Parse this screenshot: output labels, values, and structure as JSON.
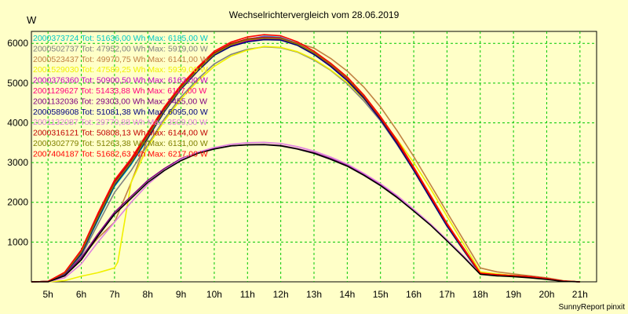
{
  "chart_data": {
    "type": "line",
    "title": "Wechselrichtervergleich vom 28.06.2019",
    "y_unit": "W",
    "ylim": [
      0,
      6300
    ],
    "y_ticks": [
      1000,
      2000,
      3000,
      4000,
      5000,
      6000
    ],
    "xlim": [
      4.5,
      21.5
    ],
    "x_ticks": [
      5,
      6,
      7,
      8,
      9,
      10,
      11,
      12,
      13,
      14,
      15,
      16,
      17,
      18,
      19,
      20,
      21
    ],
    "x_tick_labels": [
      "5h",
      "6h",
      "7h",
      "8h",
      "9h",
      "10h",
      "11h",
      "12h",
      "13h",
      "14h",
      "15h",
      "16h",
      "17h",
      "18h",
      "19h",
      "20h",
      "21h"
    ],
    "grid": true,
    "legend_position": "top-left",
    "credit": "SunnyReport pinxit",
    "series": [
      {
        "name": "2000373724 Tot: 51636,00 Wh Max: 6185,00 W",
        "color": "#00c8c8",
        "x": [
          4.5,
          5,
          5.5,
          6,
          6.5,
          7,
          7.5,
          8,
          8.5,
          9,
          9.5,
          10,
          10.5,
          11,
          11.5,
          12,
          12.5,
          13,
          13.5,
          14,
          14.5,
          15,
          15.5,
          16,
          16.5,
          17,
          17.5,
          18,
          18.5,
          19,
          19.5,
          20,
          20.5,
          21
        ],
        "y": [
          0,
          10,
          200,
          700,
          1550,
          2400,
          2950,
          3600,
          4300,
          4900,
          5350,
          5750,
          5960,
          6100,
          6180,
          6150,
          6000,
          5750,
          5450,
          5100,
          4650,
          4100,
          3500,
          2800,
          2100,
          1400,
          800,
          200,
          170,
          150,
          130,
          80,
          20,
          0
        ]
      },
      {
        "name": "2000502737 Tot: 47952,00 Wh Max: 5919,00 W",
        "color": "#808080",
        "x": [
          4.5,
          5,
          5.5,
          6,
          6.5,
          7,
          7.5,
          8,
          8.5,
          9,
          9.5,
          10,
          10.5,
          11,
          11.5,
          12,
          12.5,
          13,
          13.5,
          14,
          14.5,
          15,
          15.5,
          16,
          16.5,
          17,
          17.5,
          18,
          18.5,
          19,
          19.5,
          20,
          20.5,
          21
        ],
        "y": [
          0,
          10,
          190,
          650,
          1450,
          2250,
          2800,
          3450,
          4100,
          4650,
          5100,
          5480,
          5720,
          5850,
          5910,
          5890,
          5780,
          5580,
          5320,
          4980,
          4550,
          4050,
          3450,
          2800,
          2100,
          1450,
          850,
          230,
          190,
          160,
          140,
          90,
          20,
          0
        ]
      },
      {
        "name": "2000523437 Tot: 49970,75 Wh Max: 6141,00 W",
        "color": "#c08040",
        "x": [
          4.5,
          5,
          5.5,
          6,
          6.5,
          7,
          7.5,
          8,
          8.5,
          9,
          9.5,
          10,
          10.5,
          11,
          11.5,
          12,
          12.5,
          13,
          13.5,
          14,
          14.5,
          15,
          15.5,
          16,
          16.5,
          17,
          17.5,
          18,
          18.5,
          19,
          19.5,
          20,
          20.5,
          21
        ],
        "y": [
          0,
          10,
          150,
          600,
          1100,
          1500,
          2500,
          3600,
          4350,
          4850,
          5300,
          5700,
          5930,
          6070,
          6120,
          6100,
          6010,
          5880,
          5620,
          5300,
          4900,
          4400,
          3800,
          3150,
          2450,
          1750,
          1050,
          350,
          250,
          200,
          150,
          100,
          30,
          0
        ]
      },
      {
        "name": "2001529030 Tot: 47589,25 Wh Max: 5939,00 W",
        "color": "#f0f000",
        "x": [
          4.5,
          5,
          5.5,
          6,
          6.5,
          7,
          7.1,
          7.5,
          8,
          8.5,
          9,
          9.5,
          10,
          10.5,
          11,
          11.5,
          12,
          12.5,
          13,
          13.5,
          14,
          14.5,
          15,
          15.5,
          16,
          16.5,
          17,
          17.5,
          18,
          18.5,
          19,
          19.5,
          20,
          20.5,
          21
        ],
        "y": [
          0,
          0,
          30,
          140,
          230,
          350,
          500,
          2500,
          3400,
          4050,
          4600,
          5050,
          5420,
          5680,
          5830,
          5920,
          5900,
          5790,
          5600,
          5330,
          5010,
          4600,
          4120,
          3580,
          3000,
          2350,
          1650,
          950,
          250,
          200,
          160,
          130,
          80,
          20,
          0
        ]
      },
      {
        "name": "2000376360 Tot: 50900,50 Wh Max: 6163,00 W",
        "color": "#c000c0",
        "x": [
          4.5,
          5,
          5.5,
          6,
          6.5,
          7,
          7.5,
          8,
          8.5,
          9,
          9.5,
          10,
          10.5,
          11,
          11.5,
          12,
          12.5,
          13,
          13.5,
          14,
          14.5,
          15,
          15.5,
          16,
          16.5,
          17,
          17.5,
          18,
          18.5,
          19,
          19.5,
          20,
          20.5,
          21
        ],
        "y": [
          0,
          10,
          230,
          760,
          1650,
          2500,
          3050,
          3700,
          4350,
          4900,
          5350,
          5750,
          5980,
          6110,
          6160,
          6140,
          5990,
          5750,
          5450,
          5100,
          4650,
          4100,
          3500,
          2850,
          2150,
          1450,
          820,
          210,
          175,
          150,
          130,
          80,
          20,
          0
        ]
      },
      {
        "name": "2001129627 Tot: 51433,88 Wh Max: 6117,00 W",
        "color": "#ff0080",
        "x": [
          4.5,
          5,
          5.5,
          6,
          6.5,
          7,
          7.5,
          8,
          8.5,
          9,
          9.5,
          10,
          10.5,
          11,
          11.5,
          12,
          12.5,
          13,
          13.5,
          14,
          14.5,
          15,
          15.5,
          16,
          16.5,
          17,
          17.5,
          18,
          18.5,
          19,
          19.5,
          20,
          20.5,
          21
        ],
        "y": [
          0,
          10,
          220,
          720,
          1600,
          2450,
          3000,
          3650,
          4300,
          4880,
          5330,
          5720,
          5940,
          6060,
          6110,
          6100,
          5960,
          5730,
          5430,
          5080,
          4640,
          4100,
          3500,
          2830,
          2130,
          1430,
          810,
          200,
          170,
          150,
          130,
          80,
          20,
          0
        ]
      },
      {
        "name": "2001132036 Tot: 29303,00 Wh Max: 3455,00 W",
        "color": "#800080",
        "x": [
          4.5,
          5,
          5.5,
          6,
          6.5,
          7,
          7.5,
          8,
          8.5,
          9,
          9.5,
          10,
          10.5,
          11,
          11.5,
          12,
          12.5,
          13,
          13.5,
          14,
          14.5,
          15,
          15.5,
          16,
          16.5,
          17,
          17.5,
          18,
          18.5,
          19,
          19.5,
          20,
          20.5,
          21
        ],
        "y": [
          0,
          10,
          170,
          600,
          1200,
          1750,
          2150,
          2550,
          2850,
          3100,
          3250,
          3350,
          3420,
          3450,
          3455,
          3430,
          3350,
          3250,
          3100,
          2930,
          2700,
          2450,
          2150,
          1800,
          1450,
          1050,
          640,
          200,
          160,
          140,
          110,
          70,
          15,
          0
        ]
      },
      {
        "name": "2000589608 Tot: 51081,38 Wh Max: 6095,00 W",
        "color": "#000080",
        "x": [
          4.5,
          5,
          5.5,
          6,
          6.5,
          7,
          7.5,
          8,
          8.5,
          9,
          9.5,
          10,
          10.5,
          11,
          11.5,
          12,
          12.5,
          13,
          13.5,
          14,
          14.5,
          15,
          15.5,
          16,
          16.5,
          17,
          17.5,
          18,
          18.5,
          19,
          19.5,
          20,
          20.5,
          21
        ],
        "y": [
          0,
          10,
          210,
          700,
          1580,
          2430,
          2980,
          3620,
          4280,
          4850,
          5300,
          5700,
          5920,
          6040,
          6090,
          6080,
          5950,
          5720,
          5420,
          5060,
          4620,
          4080,
          3470,
          2800,
          2100,
          1400,
          790,
          200,
          170,
          150,
          130,
          80,
          20,
          0
        ]
      },
      {
        "name": "2001132087 Tot: 29770,88 Wh Max: 3509,00 W",
        "color": "#e080e0",
        "x": [
          4.5,
          5,
          5.5,
          6,
          6.5,
          7,
          7.5,
          8,
          8.5,
          9,
          9.5,
          10,
          10.5,
          11,
          11.5,
          12,
          12.5,
          13,
          13.5,
          14,
          14.5,
          15,
          15.5,
          16,
          16.5,
          17,
          17.5,
          18,
          18.5,
          19,
          19.5,
          20,
          20.5,
          21
        ],
        "y": [
          0,
          0,
          100,
          450,
          1000,
          1500,
          2000,
          2450,
          2800,
          3080,
          3260,
          3380,
          3460,
          3500,
          3509,
          3480,
          3400,
          3290,
          3140,
          2960,
          2730,
          2470,
          2170,
          1820,
          1460,
          1060,
          650,
          200,
          170,
          150,
          120,
          80,
          20,
          0
        ]
      },
      {
        "name": "2000316121 Tot: 50808,13 Wh Max: 6144,00 W",
        "color": "#c00000",
        "x": [
          4.5,
          5,
          5.5,
          6,
          6.5,
          7,
          7.5,
          8,
          8.5,
          9,
          9.5,
          10,
          10.5,
          11,
          11.5,
          12,
          12.5,
          13,
          13.5,
          14,
          14.5,
          15,
          15.5,
          16,
          16.5,
          17,
          17.5,
          18,
          18.5,
          19,
          19.5,
          20,
          20.5,
          21
        ],
        "y": [
          0,
          10,
          230,
          780,
          1680,
          2520,
          3060,
          3720,
          4360,
          4920,
          5370,
          5760,
          5990,
          6110,
          6144,
          6130,
          5990,
          5760,
          5460,
          5110,
          4660,
          4120,
          3520,
          2850,
          2150,
          1450,
          820,
          210,
          175,
          150,
          130,
          80,
          20,
          0
        ]
      },
      {
        "name": "2000302779 Tot: 51263,38 Wh Max: 6131,00 W",
        "color": "#808000",
        "x": [
          4.5,
          5,
          5.5,
          6,
          6.5,
          7,
          7.5,
          8,
          8.5,
          9,
          9.5,
          10,
          10.5,
          11,
          11.5,
          12,
          12.5,
          13,
          13.5,
          14,
          14.5,
          15,
          15.5,
          16,
          16.5,
          17,
          17.5,
          18,
          18.5,
          19,
          19.5,
          20,
          20.5,
          21
        ],
        "y": [
          0,
          10,
          220,
          740,
          1620,
          2460,
          3000,
          3660,
          4310,
          4880,
          5330,
          5730,
          5960,
          6090,
          6131,
          6120,
          5980,
          5760,
          5470,
          5120,
          4680,
          4150,
          3550,
          2880,
          2180,
          1470,
          840,
          210,
          180,
          155,
          130,
          80,
          20,
          0
        ]
      },
      {
        "name": "2007404187 Tot: 51682,63 Wh Max: 6217,00 W",
        "color": "#ff0000",
        "x": [
          4.5,
          5,
          5.5,
          6,
          6.5,
          7,
          7.5,
          8,
          8.5,
          9,
          9.5,
          10,
          10.5,
          11,
          11.5,
          12,
          12.5,
          13,
          13.5,
          14,
          14.5,
          15,
          15.5,
          16,
          16.5,
          17,
          17.5,
          18,
          18.5,
          19,
          19.5,
          20,
          20.5,
          21
        ],
        "y": [
          0,
          10,
          240,
          800,
          1720,
          2560,
          3100,
          3750,
          4400,
          4950,
          5400,
          5800,
          6030,
          6160,
          6217,
          6190,
          6040,
          5800,
          5500,
          5150,
          4700,
          4160,
          3560,
          2880,
          2180,
          1470,
          840,
          220,
          180,
          155,
          130,
          80,
          20,
          0
        ]
      },
      {
        "name": "",
        "color": "#000000",
        "x": [
          4.5,
          5,
          5.5,
          6,
          6.5,
          7,
          7.5,
          8,
          8.5,
          9,
          9.5,
          10,
          10.5,
          11,
          11.5,
          12,
          12.5,
          13,
          13.5,
          14,
          14.5,
          15,
          15.5,
          16,
          16.5,
          17,
          17.5,
          18,
          18.5,
          19,
          19.5,
          20,
          20.5,
          21
        ],
        "y": [
          0,
          0,
          150,
          550,
          1150,
          1700,
          2100,
          2500,
          2800,
          3050,
          3230,
          3340,
          3420,
          3445,
          3450,
          3420,
          3340,
          3230,
          3080,
          2910,
          2680,
          2420,
          2120,
          1780,
          1430,
          1030,
          620,
          190,
          150,
          130,
          100,
          60,
          10,
          0
        ]
      }
    ]
  }
}
